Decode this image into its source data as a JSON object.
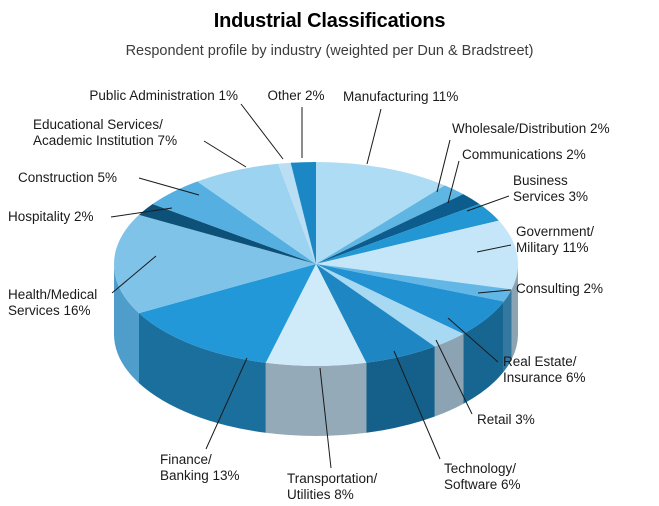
{
  "title": "Industrial Classifications",
  "subtitle": "Respondent profile by industry (weighted per Dun & Bradstreet)",
  "chart_data": {
    "type": "pie",
    "style": "3d",
    "title": "Industrial Classifications",
    "subtitle": "Respondent profile by industry (weighted per Dun & Bradstreet)",
    "unit": "percent",
    "total": 100,
    "direction": "clockwise",
    "start_angle_deg": 0,
    "legend": "none",
    "line_color": "#1a1a1a",
    "segments": [
      {
        "label": "Manufacturing",
        "value": 11,
        "display": "Manufacturing 11%",
        "label_lines": [
          "Manufacturing 11%"
        ],
        "color": "#aedcf4",
        "side": "#7a9cb0"
      },
      {
        "label": "Wholesale/Distribution",
        "value": 2,
        "display": "Wholesale/Distribution 2%",
        "label_lines": [
          "Wholesale/Distribution 2%"
        ],
        "color": "#5fb6e3",
        "side": "#41809f"
      },
      {
        "label": "Communications",
        "value": 2,
        "display": "Communications 2%",
        "label_lines": [
          "Communications 2%"
        ],
        "color": "#0d5c8e",
        "side": "#093f60"
      },
      {
        "label": "Business Services",
        "value": 3,
        "display": "Business Services 3%",
        "label_lines": [
          "Business",
          "Services 3%"
        ],
        "color": "#2397d3",
        "side": "#186a93"
      },
      {
        "label": "Government/Military",
        "value": 11,
        "display": "Government/Military 11%",
        "label_lines": [
          "Government/",
          "Military 11%"
        ],
        "color": "#c4e6f8",
        "side": "#8ca3b3"
      },
      {
        "label": "Consulting",
        "value": 2,
        "display": "Consulting 2%",
        "label_lines": [
          "Consulting 2%"
        ],
        "color": "#62b7e6",
        "side": "#35789f"
      },
      {
        "label": "Real Estate/Insurance",
        "value": 6,
        "display": "Real Estate/Insurance 6%",
        "label_lines": [
          "Real Estate/",
          "Insurance 6%"
        ],
        "color": "#2191d2",
        "side": "#176691"
      },
      {
        "label": "Retail",
        "value": 3,
        "display": "Retail 3%",
        "label_lines": [
          "Retail 3%"
        ],
        "color": "#a7d9f2",
        "side": "#8ca3b3"
      },
      {
        "label": "Technology/Software",
        "value": 6,
        "display": "Technology/Software 6%",
        "label_lines": [
          "Technology/",
          "Software 6%"
        ],
        "color": "#1d86c3",
        "side": "#14608a"
      },
      {
        "label": "Transportation/Utilities",
        "value": 8,
        "display": "Transportation/Utilities 8%",
        "label_lines": [
          "Transportation/",
          "Utilities 8%"
        ],
        "color": "#cfeaf8",
        "side": "#94aab8"
      },
      {
        "label": "Finance/Banking",
        "value": 13,
        "display": "Finance/Banking 13%",
        "label_lines": [
          "Finance/",
          "Banking 13%"
        ],
        "color": "#2398d8",
        "side": "#1a6f9c"
      },
      {
        "label": "Health/Medical Services",
        "value": 16,
        "display": "Health/Medical Services 16%",
        "label_lines": [
          "Health/Medical",
          "Services 16%"
        ],
        "color": "#7fc3e9",
        "side": "#4f9dcb"
      },
      {
        "label": "Hospitality",
        "value": 2,
        "display": "Hospitality 2%",
        "label_lines": [
          "Hospitality 2%"
        ],
        "color": "#0d5178",
        "side": "#093852"
      },
      {
        "label": "Construction",
        "value": 5,
        "display": "Construction 5%",
        "label_lines": [
          "Construction 5%"
        ],
        "color": "#55afe0",
        "side": "#3b7a9c"
      },
      {
        "label": "Educational Services/Academic Institution",
        "value": 7,
        "display": "Educational Services/Academic Institution 7%",
        "label_lines": [
          "Educational Services/",
          "Academic Institution 7%"
        ],
        "color": "#9cd3f0",
        "side": "#6d93a8"
      },
      {
        "label": "Public Administration",
        "value": 1,
        "display": "Public Administration 1%",
        "label_lines": [
          "Public Administration 1%"
        ],
        "color": "#badff4",
        "side": "#82a0b1"
      },
      {
        "label": "Other",
        "value": 2,
        "display": "Other 2%",
        "label_lines": [
          "Other 2%"
        ],
        "color": "#1b87c4",
        "side": "#135f8b"
      }
    ]
  }
}
